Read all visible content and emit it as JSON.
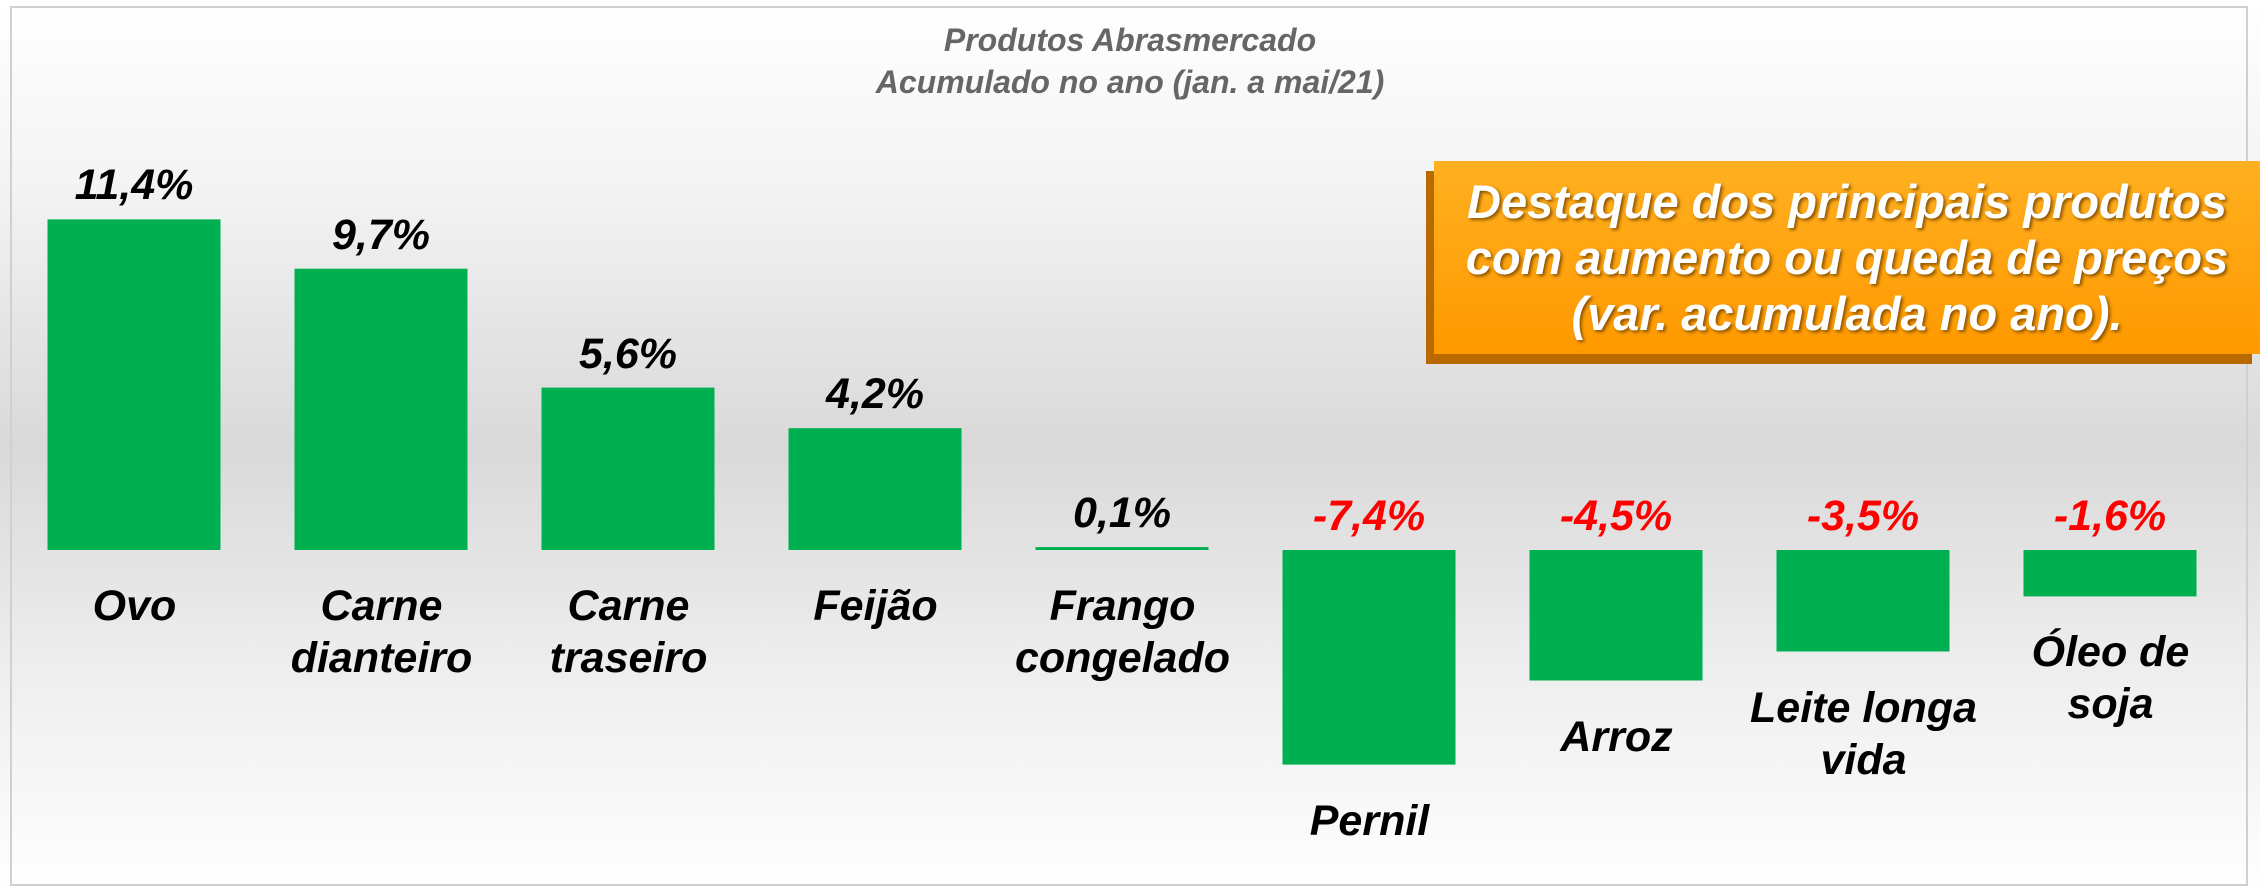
{
  "chart_data": {
    "type": "bar",
    "title": "Produtos Abrasmercado",
    "subtitle": "Acumulado no ano (jan. a mai/21)",
    "annotation": "Destaque dos principais produtos com aumento ou queda de preços (var. acumulada no ano).",
    "categories": [
      "Ovo",
      "Carne dianteiro",
      "Carne traseiro",
      "Feijão",
      "Frango congelado",
      "Pernil",
      "Arroz",
      "Leite longa vida",
      "Óleo de soja"
    ],
    "values": [
      11.4,
      9.7,
      5.6,
      4.2,
      0.1,
      -7.4,
      -4.5,
      -3.5,
      -1.6
    ],
    "value_labels": [
      "11,4%",
      "9,7%",
      "5,6%",
      "4,2%",
      "0,1%",
      "-7,4%",
      "-4,5%",
      "-3,5%",
      "-1,6%"
    ],
    "color": "#00b050",
    "label_color": "#000000",
    "negative_label_color": "#ff0000"
  }
}
